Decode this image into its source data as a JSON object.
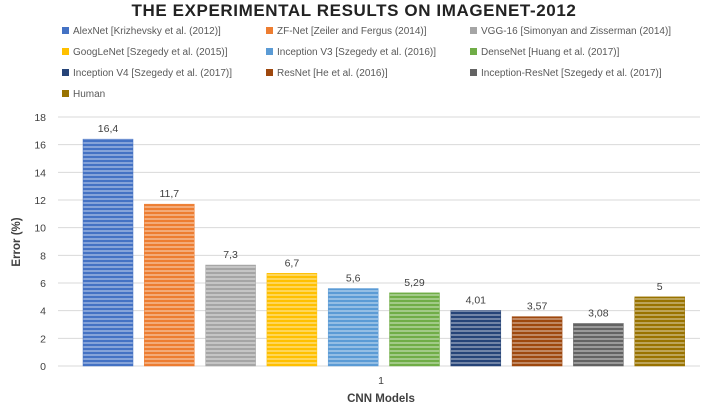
{
  "chart_data": {
    "type": "bar",
    "title": "THE EXPERIMENTAL RESULTS ON IMAGENET-2012",
    "xlabel": "CNN Models",
    "ylabel": "Error (%)",
    "categories": [
      "1"
    ],
    "ylim": [
      0,
      18
    ],
    "yticks": [
      0,
      2,
      4,
      6,
      8,
      10,
      12,
      14,
      16,
      18
    ],
    "grid": true,
    "legend_position": "top",
    "series": [
      {
        "name": "AlexNet [Krizhevsky et al. (2012)]",
        "values": [
          16.4
        ],
        "label": "16,4",
        "color": "#4472C4"
      },
      {
        "name": "ZF-Net [Zeiler and Fergus (2014)]",
        "values": [
          11.7
        ],
        "label": "11,7",
        "color": "#ED7D31"
      },
      {
        "name": "VGG-16 [Simonyan and Zisserman (2014)]",
        "values": [
          7.3
        ],
        "label": "7,3",
        "color": "#A5A5A5"
      },
      {
        "name": "GoogLeNet [Szegedy et al. (2015)]",
        "values": [
          6.7
        ],
        "label": "6,7",
        "color": "#FFC000"
      },
      {
        "name": "Inception V3 [Szegedy et al. (2016)]",
        "values": [
          5.6
        ],
        "label": "5,6",
        "color": "#5B9BD5"
      },
      {
        "name": "DenseNet [Huang et al. (2017)]",
        "values": [
          5.29
        ],
        "label": "5,29",
        "color": "#70AD47"
      },
      {
        "name": "Inception V4 [Szegedy et al. (2017)]",
        "values": [
          4.01
        ],
        "label": "4,01",
        "color": "#264478"
      },
      {
        "name": "ResNet [He et al. (2016)]",
        "values": [
          3.57
        ],
        "label": "3,57",
        "color": "#9E480E"
      },
      {
        "name": "Inception-ResNet [Szegedy et al. (2017)]",
        "values": [
          3.08
        ],
        "label": "3,08",
        "color": "#636363"
      },
      {
        "name": "Human",
        "values": [
          5
        ],
        "label": "5",
        "color": "#997300"
      }
    ]
  }
}
